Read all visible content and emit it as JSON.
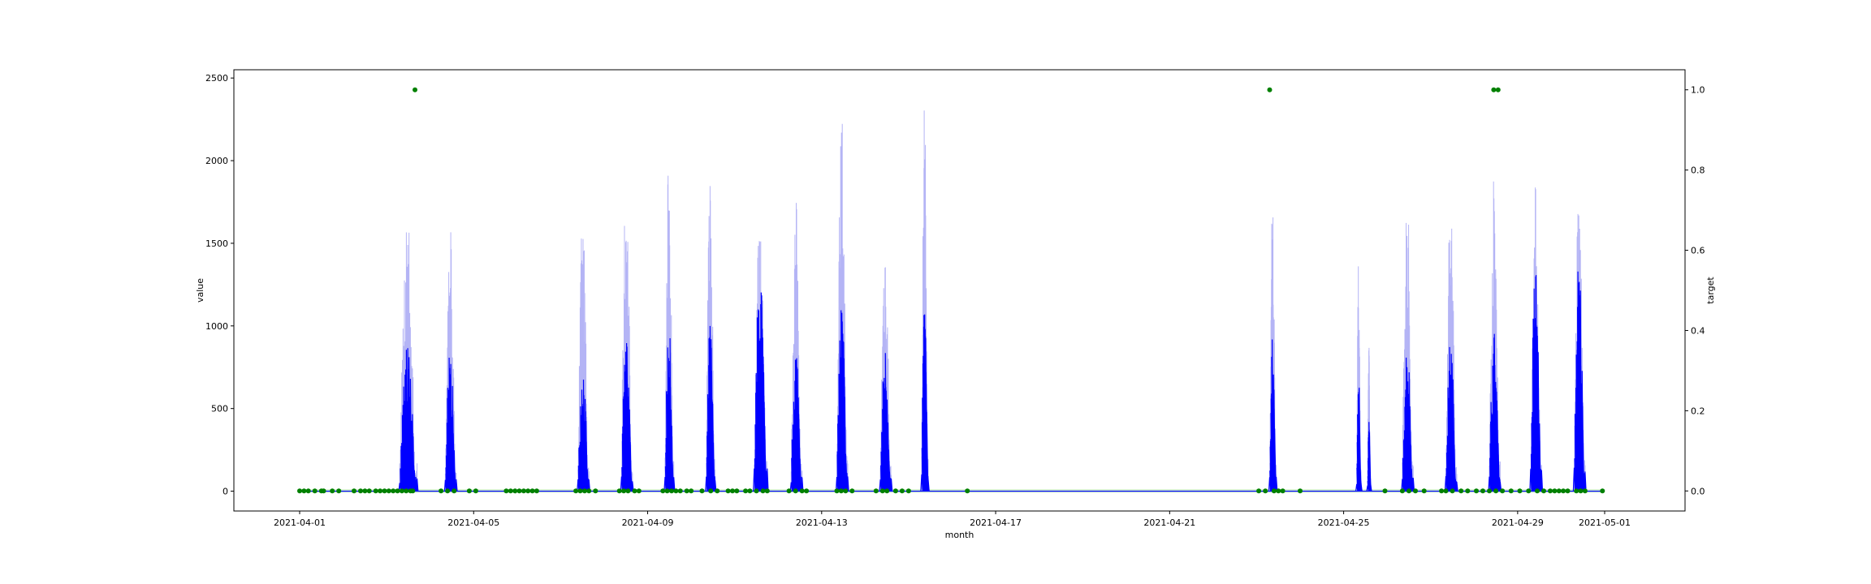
{
  "chart_data": {
    "type": "line",
    "title": "",
    "xlabel": "month",
    "ylabel": "value",
    "y2label": "target",
    "xlim": [
      "2021-04-01",
      "2021-05-01"
    ],
    "x_ticks": [
      "2021-04-01",
      "2021-04-05",
      "2021-04-09",
      "2021-04-13",
      "2021-04-17",
      "2021-04-21",
      "2021-04-25",
      "2021-04-29",
      "2021-05-01"
    ],
    "ylim": [
      -120,
      2550
    ],
    "y_ticks": [
      0,
      500,
      1000,
      1500,
      2000,
      2500
    ],
    "y2lim": [
      -0.05,
      1.05
    ],
    "y2_ticks": [
      "0.0",
      "0.2",
      "0.4",
      "0.6",
      "0.8",
      "1.0"
    ],
    "grid": false,
    "colors": {
      "value_line": "#0000ff",
      "value_band": "#b4b4f5",
      "target_points": "#008000",
      "target_band": "#c8e8c8"
    },
    "series": [
      {
        "name": "value",
        "style": "line",
        "bursts": [
          {
            "start": 2.3,
            "end": 2.7,
            "peak": 900,
            "band": 1740
          },
          {
            "start": 3.35,
            "end": 3.6,
            "peak": 870,
            "band": 1700
          },
          {
            "start": 6.4,
            "end": 6.65,
            "peak": 800,
            "band": 1710
          },
          {
            "start": 7.4,
            "end": 7.65,
            "peak": 1010,
            "band": 1950
          },
          {
            "start": 8.4,
            "end": 8.6,
            "peak": 1050,
            "band": 2070
          },
          {
            "start": 9.35,
            "end": 9.55,
            "peak": 1040,
            "band": 2030
          },
          {
            "start": 10.45,
            "end": 10.75,
            "peak": 1400,
            "band": 1860
          },
          {
            "start": 11.3,
            "end": 11.55,
            "peak": 920,
            "band": 1780
          },
          {
            "start": 12.35,
            "end": 12.6,
            "peak": 1180,
            "band": 2310
          },
          {
            "start": 13.35,
            "end": 13.6,
            "peak": 890,
            "band": 1620
          },
          {
            "start": 14.3,
            "end": 14.45,
            "peak": 1220,
            "band": 2390
          },
          {
            "start": 22.3,
            "end": 22.45,
            "peak": 940,
            "band": 1830
          },
          {
            "start": 24.3,
            "end": 24.4,
            "peak": 710,
            "band": 1390
          },
          {
            "start": 24.55,
            "end": 24.62,
            "peak": 450,
            "band": 900
          },
          {
            "start": 25.35,
            "end": 25.6,
            "peak": 930,
            "band": 1850
          },
          {
            "start": 26.35,
            "end": 26.6,
            "peak": 940,
            "band": 1850
          },
          {
            "start": 27.35,
            "end": 27.6,
            "peak": 980,
            "band": 1930
          },
          {
            "start": 28.3,
            "end": 28.55,
            "peak": 1420,
            "band": 1870
          },
          {
            "start": 29.3,
            "end": 29.55,
            "peak": 1450,
            "band": 1880
          }
        ]
      },
      {
        "name": "target",
        "style": "scatter",
        "ones": [
          2.65,
          22.3,
          27.45,
          27.55
        ]
      }
    ]
  }
}
